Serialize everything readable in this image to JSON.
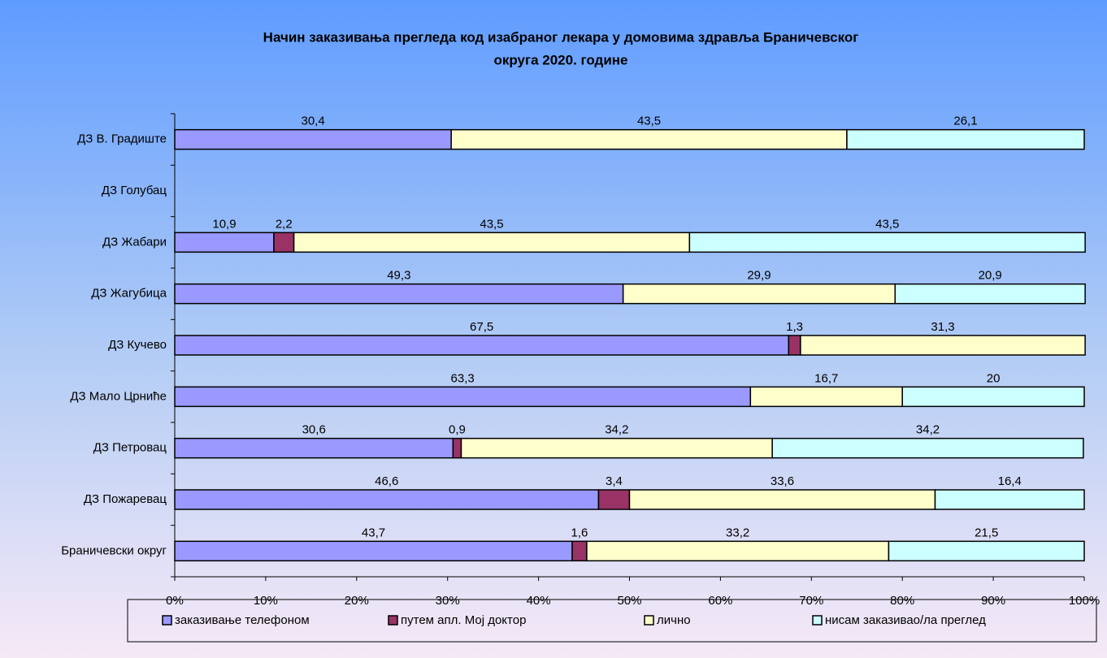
{
  "chart_data": {
    "type": "stacked_barh",
    "title": [
      "Начин заказивања прегледа код изабраног лекара у домовима здравља Браничевског",
      "округа  2020. године"
    ],
    "categories": [
      "ДЗ В. Градиште",
      "ДЗ Голубац",
      "ДЗ Жабари",
      "ДЗ Жагубица",
      "ДЗ Кучево",
      "ДЗ Мало Црниће",
      "ДЗ Петровац",
      "ДЗ Пожаревац",
      "Браничевски округ"
    ],
    "series": [
      {
        "name": "заказивање телефоном",
        "color": "#9999ff",
        "values": [
          30.4,
          null,
          10.9,
          49.3,
          67.5,
          63.3,
          30.6,
          46.6,
          43.7
        ],
        "value_labels": [
          "30,4",
          null,
          "10,9",
          "49,3",
          "67,5",
          "63,3",
          "30,6",
          "46,6",
          "43,7"
        ]
      },
      {
        "name": "путем апл. Мој доктор",
        "color": "#993366",
        "values": [
          null,
          null,
          2.2,
          null,
          1.3,
          null,
          0.9,
          3.4,
          1.6
        ],
        "value_labels": [
          null,
          null,
          "2,2",
          null,
          "1,3",
          null,
          "0,9",
          "3,4",
          "1,6"
        ]
      },
      {
        "name": "лично",
        "color": "#ffffcc",
        "values": [
          43.5,
          null,
          43.5,
          29.9,
          31.3,
          16.7,
          34.2,
          33.6,
          33.2
        ],
        "value_labels": [
          "43,5",
          null,
          "43,5",
          "29,9",
          "31,3",
          "16,7",
          "34,2",
          "33,6",
          "33,2"
        ]
      },
      {
        "name": "нисам заказивао/ла преглед",
        "color": "#ccffff",
        "values": [
          26.1,
          null,
          43.5,
          20.9,
          null,
          20,
          34.2,
          16.4,
          21.5
        ],
        "value_labels": [
          "26,1",
          null,
          "43,5",
          "20,9",
          null,
          "20",
          "34,2",
          "16,4",
          "21,5"
        ]
      }
    ],
    "xlim": [
      0,
      100
    ],
    "xticks": [
      {
        "value": 0,
        "label": "0%"
      },
      {
        "value": 10,
        "label": "10%"
      },
      {
        "value": 20,
        "label": "20%"
      },
      {
        "value": 30,
        "label": "30%"
      },
      {
        "value": 40,
        "label": "40%"
      },
      {
        "value": 50,
        "label": "50%"
      },
      {
        "value": 60,
        "label": "60%"
      },
      {
        "value": 70,
        "label": "70%"
      },
      {
        "value": 80,
        "label": "80%"
      },
      {
        "value": 90,
        "label": "90%"
      },
      {
        "value": 100,
        "label": "100%"
      }
    ],
    "legend": "bottom"
  }
}
